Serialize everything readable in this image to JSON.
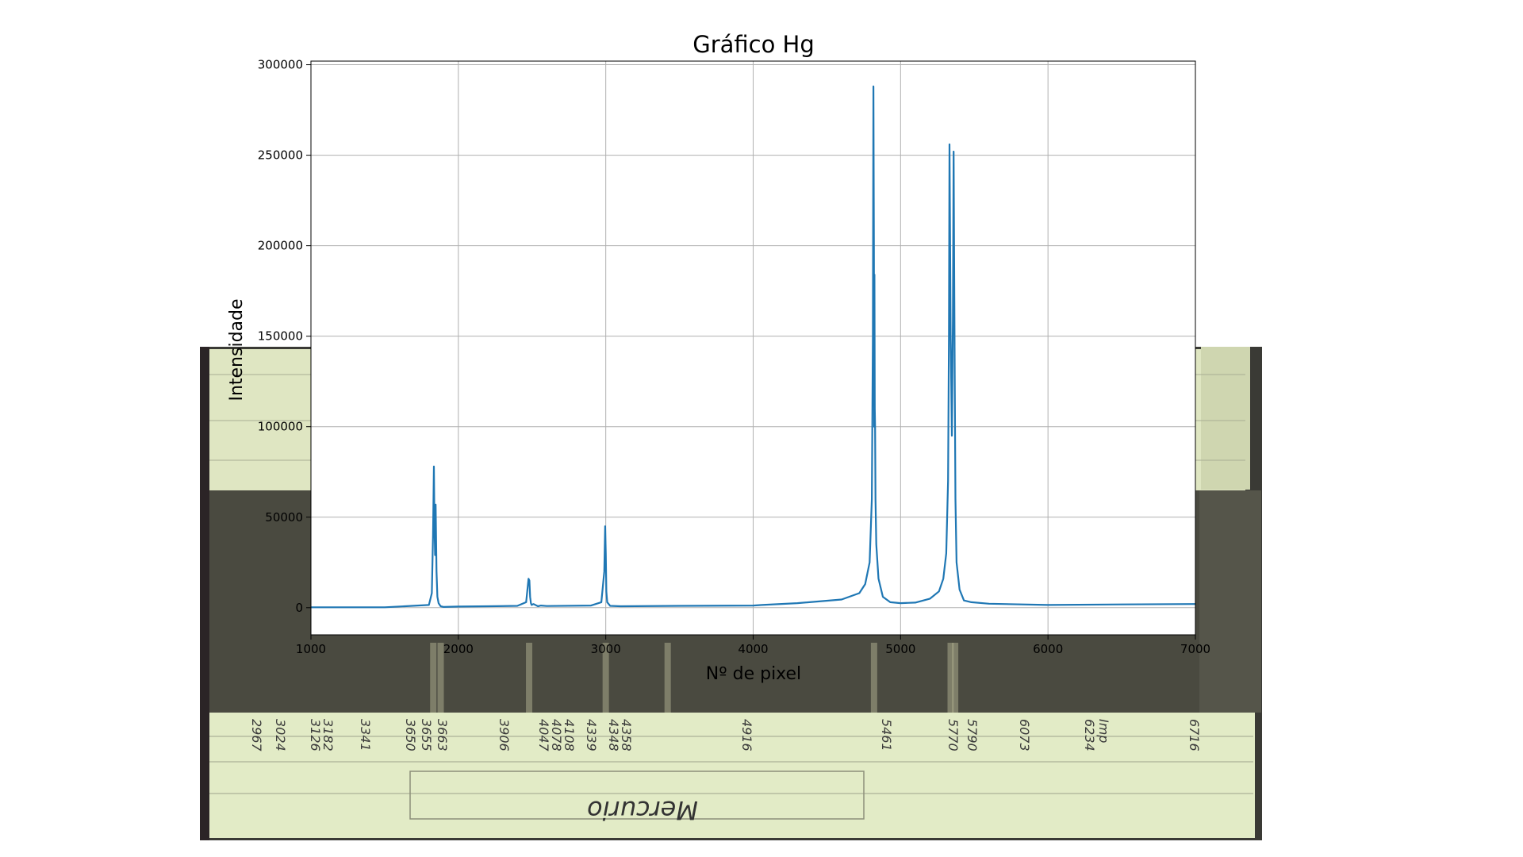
{
  "plate": {
    "handwritten_labels": [
      "2967",
      "3024",
      "3126",
      "3182",
      "3341",
      "3650",
      "3655",
      "3663",
      "3906",
      "4047",
      "4078",
      "4108",
      "4339",
      "4348",
      "4358",
      "4916",
      "5461",
      "5770",
      "5790",
      "6073",
      "6234",
      "Imp",
      "6716",
      "Mercurio"
    ]
  },
  "chart_data": {
    "type": "line",
    "title": "Gráfico Hg",
    "xlabel": "Nº de pixel",
    "ylabel": "Intensidade",
    "xlim": [
      1000,
      7000
    ],
    "ylim": [
      -15000,
      302000
    ],
    "xticks": [
      1000,
      2000,
      3000,
      4000,
      5000,
      6000,
      7000
    ],
    "yticks": [
      0,
      50000,
      100000,
      150000,
      200000,
      250000,
      300000
    ],
    "grid": true,
    "legend": "none",
    "line_color": "#1f77b4",
    "series": [
      {
        "x": [
          1000,
          1500,
          1800,
          1820,
          1828,
          1834,
          1838,
          1842,
          1846,
          1852,
          1858,
          1866,
          1880,
          1900,
          2000,
          2200,
          2400,
          2460,
          2476,
          2482,
          2487,
          2492,
          2497,
          2510,
          2540,
          2560,
          2600,
          2900,
          2970,
          2990,
          2996,
          3000,
          3004,
          3010,
          3030,
          3100,
          3500,
          4000,
          4060,
          4300,
          4600,
          4720,
          4760,
          4790,
          4805,
          4812,
          4816,
          4819,
          4821,
          4823,
          4825,
          4827,
          4830,
          4835,
          4850,
          4880,
          4930,
          5000,
          5100,
          5200,
          5260,
          5290,
          5310,
          5322,
          5328,
          5332,
          5336,
          5340,
          5348,
          5355,
          5360,
          5364,
          5368,
          5372,
          5380,
          5400,
          5430,
          5480,
          5600,
          6000,
          6500,
          7000
        ],
        "y": [
          200,
          200,
          1500,
          8000,
          40000,
          78000,
          46000,
          29000,
          57000,
          20000,
          6000,
          2500,
          800,
          400,
          600,
          800,
          1000,
          3000,
          16000,
          15000,
          6000,
          2500,
          1500,
          2000,
          800,
          1200,
          900,
          1200,
          3000,
          20000,
          45000,
          30000,
          9000,
          3000,
          1000,
          800,
          1000,
          1200,
          1500,
          2500,
          4500,
          8000,
          13000,
          25000,
          60000,
          150000,
          288000,
          200000,
          100000,
          184000,
          110000,
          100000,
          60000,
          35000,
          16000,
          6000,
          3000,
          2500,
          2800,
          5000,
          9000,
          16000,
          30000,
          70000,
          150000,
          256000,
          200000,
          150000,
          95000,
          160000,
          252000,
          180000,
          120000,
          60000,
          25000,
          10000,
          4000,
          3000,
          2200,
          1500,
          1800,
          2000
        ]
      }
    ]
  }
}
